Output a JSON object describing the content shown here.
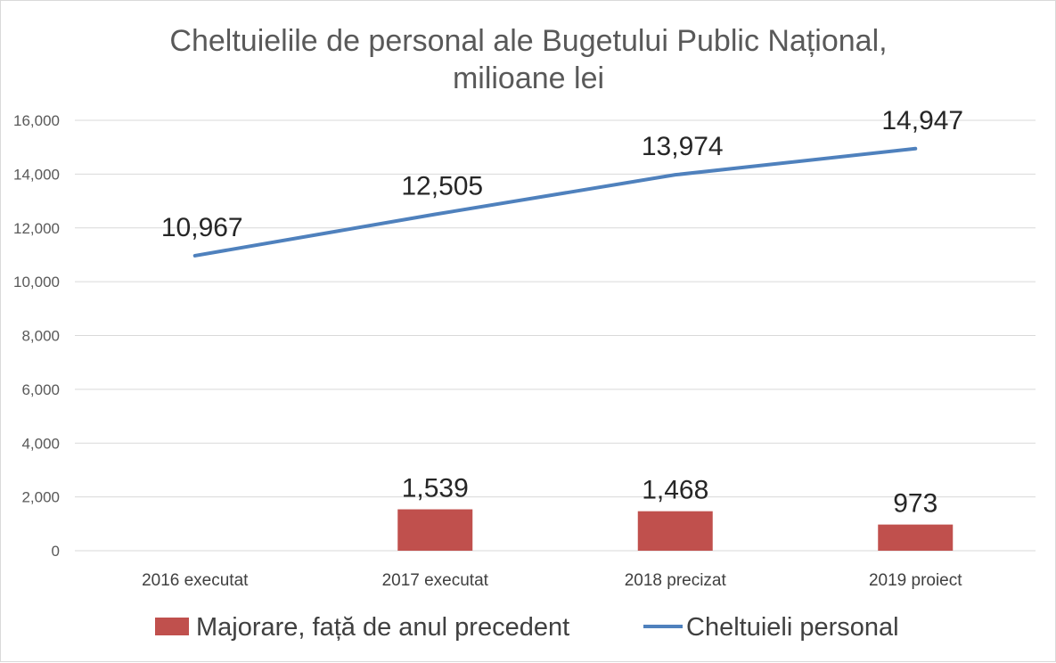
{
  "chart_data": {
    "type": "bar",
    "title_lines": [
      "Cheltuielile de personal ale Bugetului Public Național,",
      "milioane lei"
    ],
    "categories": [
      "2016 executat",
      "2017 executat",
      "2018 precizat",
      "2019 proiect"
    ],
    "ylim": [
      0,
      16000
    ],
    "y_ticks": [
      0,
      2000,
      4000,
      6000,
      8000,
      10000,
      12000,
      14000,
      16000
    ],
    "y_tick_labels": [
      "0",
      "2,000",
      "4,000",
      "6,000",
      "8,000",
      "10,000",
      "12,000",
      "14,000",
      "16,000"
    ],
    "grid": true,
    "legend_position": "bottom",
    "series": [
      {
        "name": "Majorare, față de anul precedent",
        "type": "bar",
        "color": "#c0504d",
        "values": [
          null,
          1539,
          1468,
          973
        ],
        "labels": [
          "",
          "1,539",
          "1,468",
          "973"
        ]
      },
      {
        "name": "Cheltuieli personal",
        "type": "line",
        "color": "#4f81bd",
        "values": [
          10967,
          12505,
          13974,
          14947
        ],
        "labels": [
          "10,967",
          "12,505",
          "13,974",
          "14,947"
        ]
      }
    ]
  }
}
